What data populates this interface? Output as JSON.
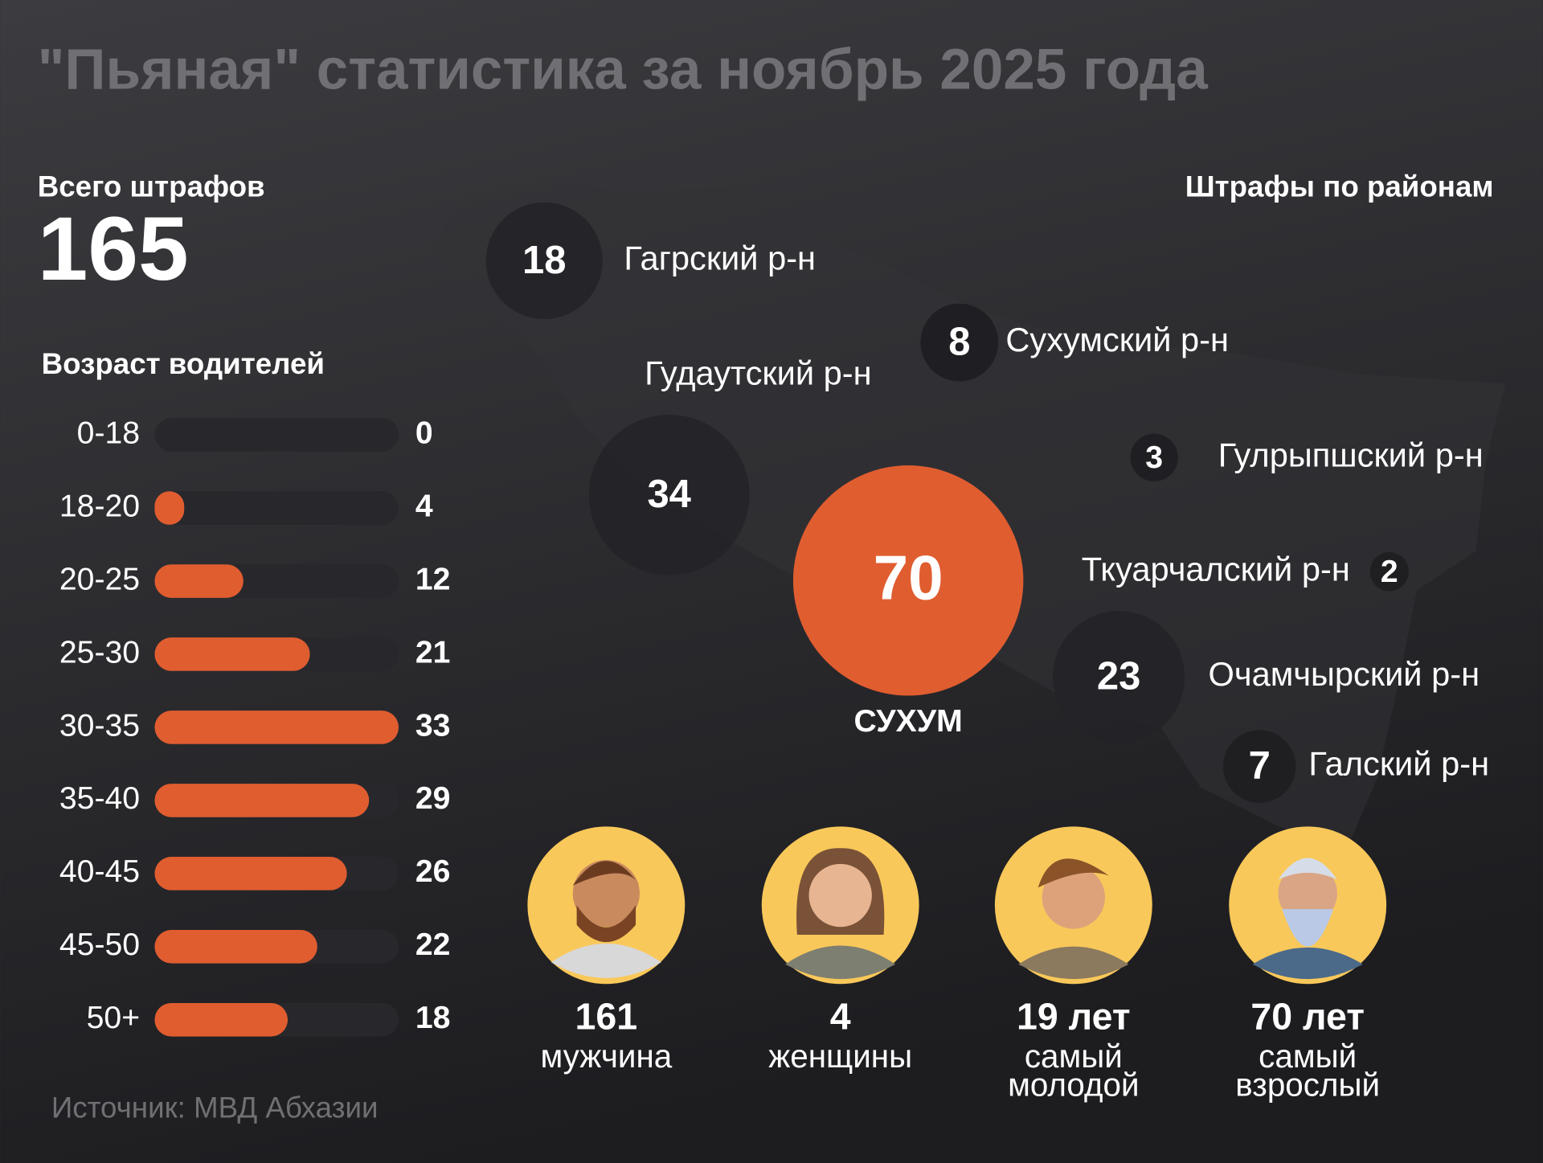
{
  "title": "\"Пьяная\" статистика за ноябрь 2025 года",
  "total": {
    "label": "Всего штрафов",
    "value": 165
  },
  "chart_data": [
    {
      "type": "bar",
      "title": "Возраст водителей",
      "categories": [
        "0-18",
        "18-20",
        "20-25",
        "25-30",
        "30-35",
        "35-40",
        "40-45",
        "45-50",
        "50+"
      ],
      "values": [
        0,
        4,
        12,
        21,
        33,
        29,
        26,
        22,
        18
      ],
      "color": "#e05d30",
      "xlim": [
        0,
        33
      ]
    },
    {
      "type": "bubble",
      "title": "Штрафы по районам",
      "categories": [
        "Гагрский р-н",
        "Сухумский р-н",
        "Гудаутский р-н",
        "Гулрыпшский р-н",
        "Ткуарчалский р-н",
        "Очамчырский р-н",
        "Галский р-н",
        "СУХУМ"
      ],
      "values": [
        18,
        8,
        34,
        3,
        2,
        23,
        7,
        70
      ],
      "color": "#e05d30"
    }
  ],
  "people": [
    {
      "value": 161,
      "label": [
        "мужчина"
      ]
    },
    {
      "value": 4,
      "label": [
        "женщины"
      ]
    },
    {
      "value": "19 лет",
      "label": [
        "самый",
        "молодой"
      ]
    },
    {
      "value": "70 лет",
      "label": [
        "самый",
        "взрослый"
      ]
    }
  ],
  "source": "Источник: МВД Абхазии"
}
